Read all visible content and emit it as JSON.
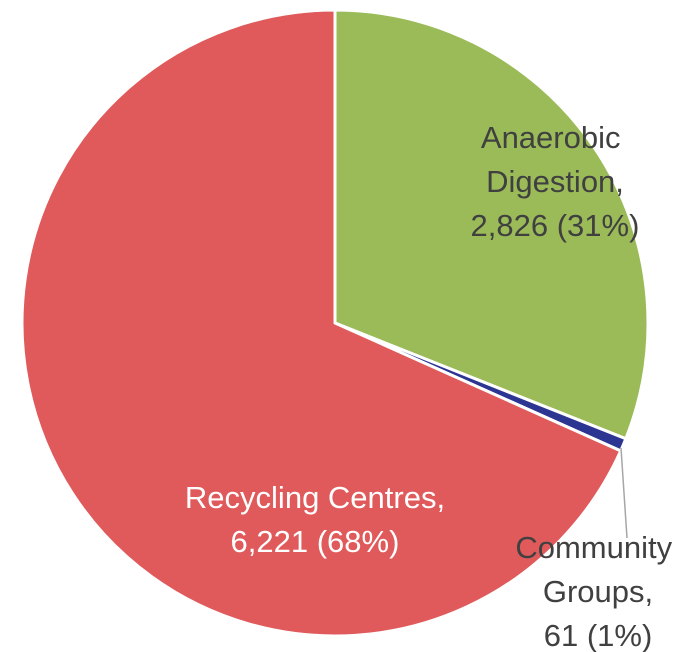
{
  "chart_data": {
    "type": "pie",
    "categories": [
      "Anaerobic Digestion,",
      "Community Groups,",
      "Recycling Centres,"
    ],
    "values": [
      2826,
      61,
      6221
    ],
    "value_labels": [
      "2,826 (31%)",
      "61 (1%)",
      "6,221 (68%)"
    ],
    "colors": [
      "#9bbb59",
      "#2c3592",
      "#e05a5b"
    ]
  }
}
